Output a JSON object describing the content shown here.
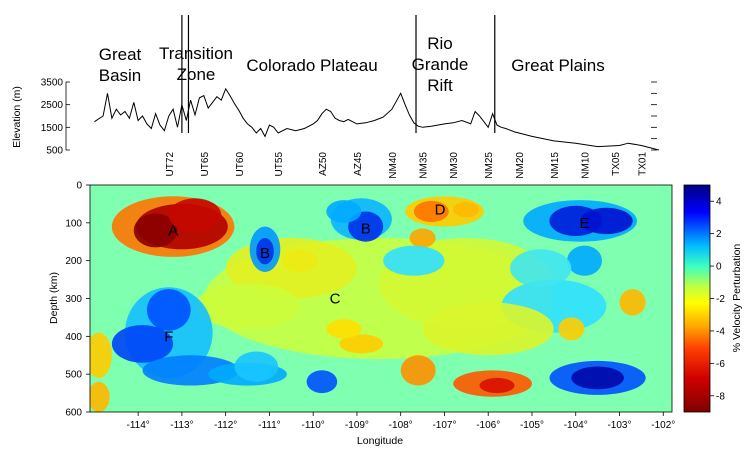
{
  "chart_data": [
    {
      "type": "line",
      "ylabel": "Elevation (m)",
      "yticks": [
        "3500",
        "2500",
        "1500",
        "500"
      ],
      "yrange": [
        500,
        3500
      ],
      "regions": [
        {
          "lines": [
            "Great",
            "Basin"
          ]
        },
        {
          "lines": [
            "Transition",
            "Zone"
          ]
        },
        {
          "lines": [
            "Colorado Plateau"
          ]
        },
        {
          "lines": [
            "Rio",
            "Grande",
            "Rift"
          ]
        },
        {
          "lines": [
            "Great Plains"
          ]
        }
      ],
      "x": [
        -115.0,
        -114.8,
        -114.7,
        -114.6,
        -114.5,
        -114.4,
        -114.3,
        -114.2,
        -114.1,
        -114.0,
        -113.9,
        -113.8,
        -113.7,
        -113.6,
        -113.5,
        -113.4,
        -113.3,
        -113.2,
        -113.1,
        -113.0,
        -112.9,
        -112.8,
        -112.7,
        -112.6,
        -112.5,
        -112.4,
        -112.3,
        -112.2,
        -112.1,
        -112.0,
        -111.9,
        -111.8,
        -111.7,
        -111.6,
        -111.5,
        -111.4,
        -111.3,
        -111.2,
        -111.1,
        -111.0,
        -110.9,
        -110.8,
        -110.6,
        -110.4,
        -110.2,
        -110.0,
        -109.9,
        -109.8,
        -109.7,
        -109.6,
        -109.5,
        -109.4,
        -109.3,
        -109.2,
        -109.0,
        -108.8,
        -108.6,
        -108.4,
        -108.2,
        -108.0,
        -107.9,
        -107.8,
        -107.7,
        -107.6,
        -107.5,
        -107.3,
        -107.0,
        -106.8,
        -106.6,
        -106.4,
        -106.3,
        -106.2,
        -106.0,
        -105.9,
        -105.8,
        -105.7,
        -105.6,
        -105.4,
        -105.0,
        -104.5,
        -104.0,
        -103.5,
        -103.0,
        -102.8,
        -102.5,
        -102.1
      ],
      "values": [
        1750,
        2000,
        3000,
        1900,
        2300,
        2050,
        2200,
        1900,
        2600,
        1800,
        2000,
        1650,
        1450,
        2100,
        1600,
        1350,
        2000,
        2300,
        1500,
        2500,
        1800,
        2700,
        2050,
        2800,
        2900,
        2350,
        2600,
        2850,
        2700,
        3200,
        2900,
        2550,
        2250,
        1900,
        1650,
        1500,
        1250,
        1450,
        1100,
        1600,
        1500,
        1250,
        1450,
        1350,
        1450,
        1650,
        1800,
        2100,
        2300,
        2200,
        1900,
        1800,
        1750,
        1850,
        1650,
        1700,
        1800,
        1950,
        2300,
        3000,
        2500,
        2050,
        1700,
        1550,
        1500,
        1550,
        1650,
        1700,
        1800,
        1650,
        2200,
        2000,
        1500,
        2100,
        1600,
        1500,
        1450,
        1300,
        1100,
        900,
        800,
        650,
        700,
        800,
        700,
        500
      ],
      "boundaries": [
        -113.0,
        -112.85,
        -107.65,
        -105.85
      ]
    },
    {
      "type": "heatmap",
      "xlabel": "Longitude",
      "ylabel": "Depth (km)",
      "xlim": [
        -115.1,
        -101.8
      ],
      "ylim": [
        0,
        600
      ],
      "xticks": [
        "-114°",
        "-113°",
        "-112°",
        "-111°",
        "-110°",
        "-109°",
        "-108°",
        "-107°",
        "-106°",
        "-105°",
        "-104°",
        "-103°",
        "-102°"
      ],
      "yticks": [
        "0",
        "100",
        "200",
        "300",
        "400",
        "500",
        "600"
      ],
      "stations": [
        "UT72",
        "UT65",
        "UT60",
        "UT55",
        "AZ50",
        "AZ45",
        "NM40",
        "NM35",
        "NM30",
        "NM25",
        "NM20",
        "NM15",
        "NM10",
        "TX05",
        "TX01"
      ],
      "station_lon": [
        -113.3,
        -112.5,
        -111.7,
        -110.8,
        -109.8,
        -109.0,
        -108.2,
        -107.5,
        -106.8,
        -106.0,
        -105.3,
        -104.5,
        -103.8,
        -103.1,
        -102.5
      ],
      "colorbar": {
        "label": "% Velocity Perturbation",
        "ticks": [
          "4",
          "2",
          "0",
          "-2",
          "-4",
          "-6",
          "-8"
        ],
        "range": [
          -9,
          5
        ]
      },
      "anomalies": [
        {
          "label": "A",
          "lon": -113.2,
          "depth": 120,
          "value": -8.0
        },
        {
          "label": "B",
          "lon": -111.1,
          "depth": 180,
          "value": 3.0
        },
        {
          "label": "B",
          "lon": -108.8,
          "depth": 115,
          "value": 3.5
        },
        {
          "label": "C",
          "lon": -109.5,
          "depth": 300,
          "value": -1.5
        },
        {
          "label": "D",
          "lon": -107.1,
          "depth": 65,
          "value": -4.5
        },
        {
          "label": "E",
          "lon": -103.8,
          "depth": 100,
          "value": 4.0
        },
        {
          "label": "F",
          "lon": -113.3,
          "depth": 400,
          "value": 3.0
        }
      ]
    }
  ]
}
